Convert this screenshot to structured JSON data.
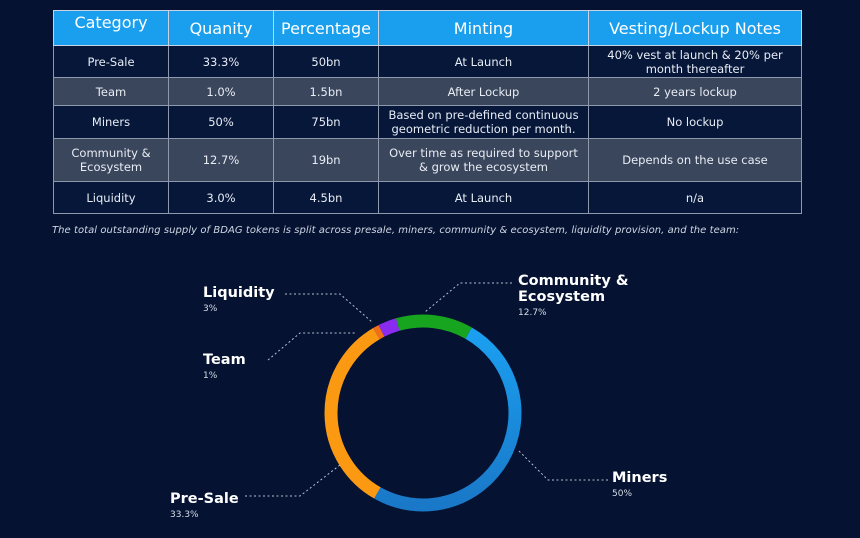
{
  "table": {
    "headers": [
      "Category",
      "Quanity",
      "Percentage",
      "Minting",
      "Vesting/Lockup Notes"
    ],
    "rows": [
      {
        "category": "Pre-Sale",
        "quantity": "33.3%",
        "percentage": "50bn",
        "minting": "At Launch",
        "notes": "40% vest at launch & 20% per month thereafter"
      },
      {
        "category": "Team",
        "quantity": "1.0%",
        "percentage": "1.5bn",
        "minting": "After Lockup",
        "notes": "2 years lockup"
      },
      {
        "category": "Miners",
        "quantity": "50%",
        "percentage": "75bn",
        "minting": "Based on pre-defined continuous geometric reduction per month.",
        "notes": "No lockup"
      },
      {
        "category": "Community & Ecosystem",
        "quantity": "12.7%",
        "percentage": "19bn",
        "minting": "Over time as required to support & grow the ecosystem",
        "notes": "Depends on the use case"
      },
      {
        "category": "Liquidity",
        "quantity": "3.0%",
        "percentage": "4.5bn",
        "minting": "At Launch",
        "notes": "n/a"
      }
    ]
  },
  "caption": "The total outstanding supply of BDAG tokens is split across presale, miners, community & ecosystem, liquidity provision, and the team:",
  "chart_data": {
    "type": "pie",
    "title": "",
    "slices": [
      {
        "label": "Community & Ecosystem",
        "value": 12.7,
        "display": "12.7%",
        "color": "#17a51f"
      },
      {
        "label": "Miners",
        "value": 50,
        "display": "50%",
        "color": "#1b9ff0"
      },
      {
        "label": "Pre-Sale",
        "value": 33.3,
        "display": "33.3%",
        "color": "#fb9a12"
      },
      {
        "label": "Team",
        "value": 1,
        "display": "1%",
        "color": "#f26f1a"
      },
      {
        "label": "Liquidity",
        "value": 3,
        "display": "3%",
        "color": "#8a2cf0"
      }
    ]
  },
  "labels": {
    "liquidity": {
      "name": "Liquidity",
      "pct": "3%"
    },
    "team": {
      "name": "Team",
      "pct": "1%"
    },
    "presale": {
      "name": "Pre-Sale",
      "pct": "33.3%"
    },
    "community": {
      "name": "Community &\nEcosystem",
      "pct": "12.7%"
    },
    "miners": {
      "name": "Miners",
      "pct": "50%"
    }
  },
  "colors": {
    "background": "#051232",
    "header": "#1a9fee",
    "row_dark": "#061739",
    "row_light": "#3a465c",
    "miners_dark": "#1a78c8"
  }
}
